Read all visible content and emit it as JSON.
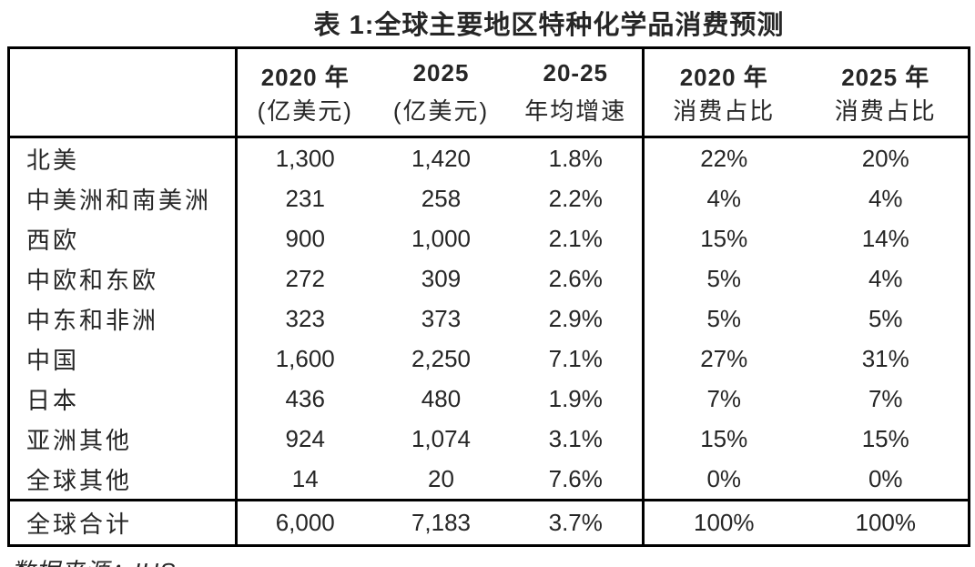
{
  "title": "表 1:全球主要地区特种化学品消费预测",
  "source_note": "数据来源：IHS",
  "colors": {
    "text": "#262626",
    "border": "#000000",
    "background": "#ffffff"
  },
  "table": {
    "columns": [
      {
        "line1": "",
        "line2": ""
      },
      {
        "line1": "2020 年",
        "line2": "(亿美元)"
      },
      {
        "line1": "2025",
        "line2": "(亿美元)"
      },
      {
        "line1": "20-25",
        "line2": "年均增速"
      },
      {
        "line1": "2020 年",
        "line2": "消费占比"
      },
      {
        "line1": "2025 年",
        "line2": "消费占比"
      }
    ],
    "rows": [
      {
        "region": "北美",
        "values": [
          "1,300",
          "1,420",
          "1.8%",
          "22%",
          "20%"
        ]
      },
      {
        "region": "中美洲和南美洲",
        "values": [
          "231",
          "258",
          "2.2%",
          "4%",
          "4%"
        ]
      },
      {
        "region": "西欧",
        "values": [
          "900",
          "1,000",
          "2.1%",
          "15%",
          "14%"
        ]
      },
      {
        "region": "中欧和东欧",
        "values": [
          "272",
          "309",
          "2.6%",
          "5%",
          "4%"
        ]
      },
      {
        "region": "中东和非洲",
        "values": [
          "323",
          "373",
          "2.9%",
          "5%",
          "5%"
        ]
      },
      {
        "region": "中国",
        "values": [
          "1,600",
          "2,250",
          "7.1%",
          "27%",
          "31%"
        ]
      },
      {
        "region": "日本",
        "values": [
          "436",
          "480",
          "1.9%",
          "7%",
          "7%"
        ]
      },
      {
        "region": "亚洲其他",
        "values": [
          "924",
          "1,074",
          "3.1%",
          "15%",
          "15%"
        ]
      },
      {
        "region": "全球其他",
        "values": [
          "14",
          "20",
          "7.6%",
          "0%",
          "0%"
        ]
      }
    ],
    "total_row": {
      "region": "全球合计",
      "values": [
        "6,000",
        "7,183",
        "3.7%",
        "100%",
        "100%"
      ]
    }
  }
}
